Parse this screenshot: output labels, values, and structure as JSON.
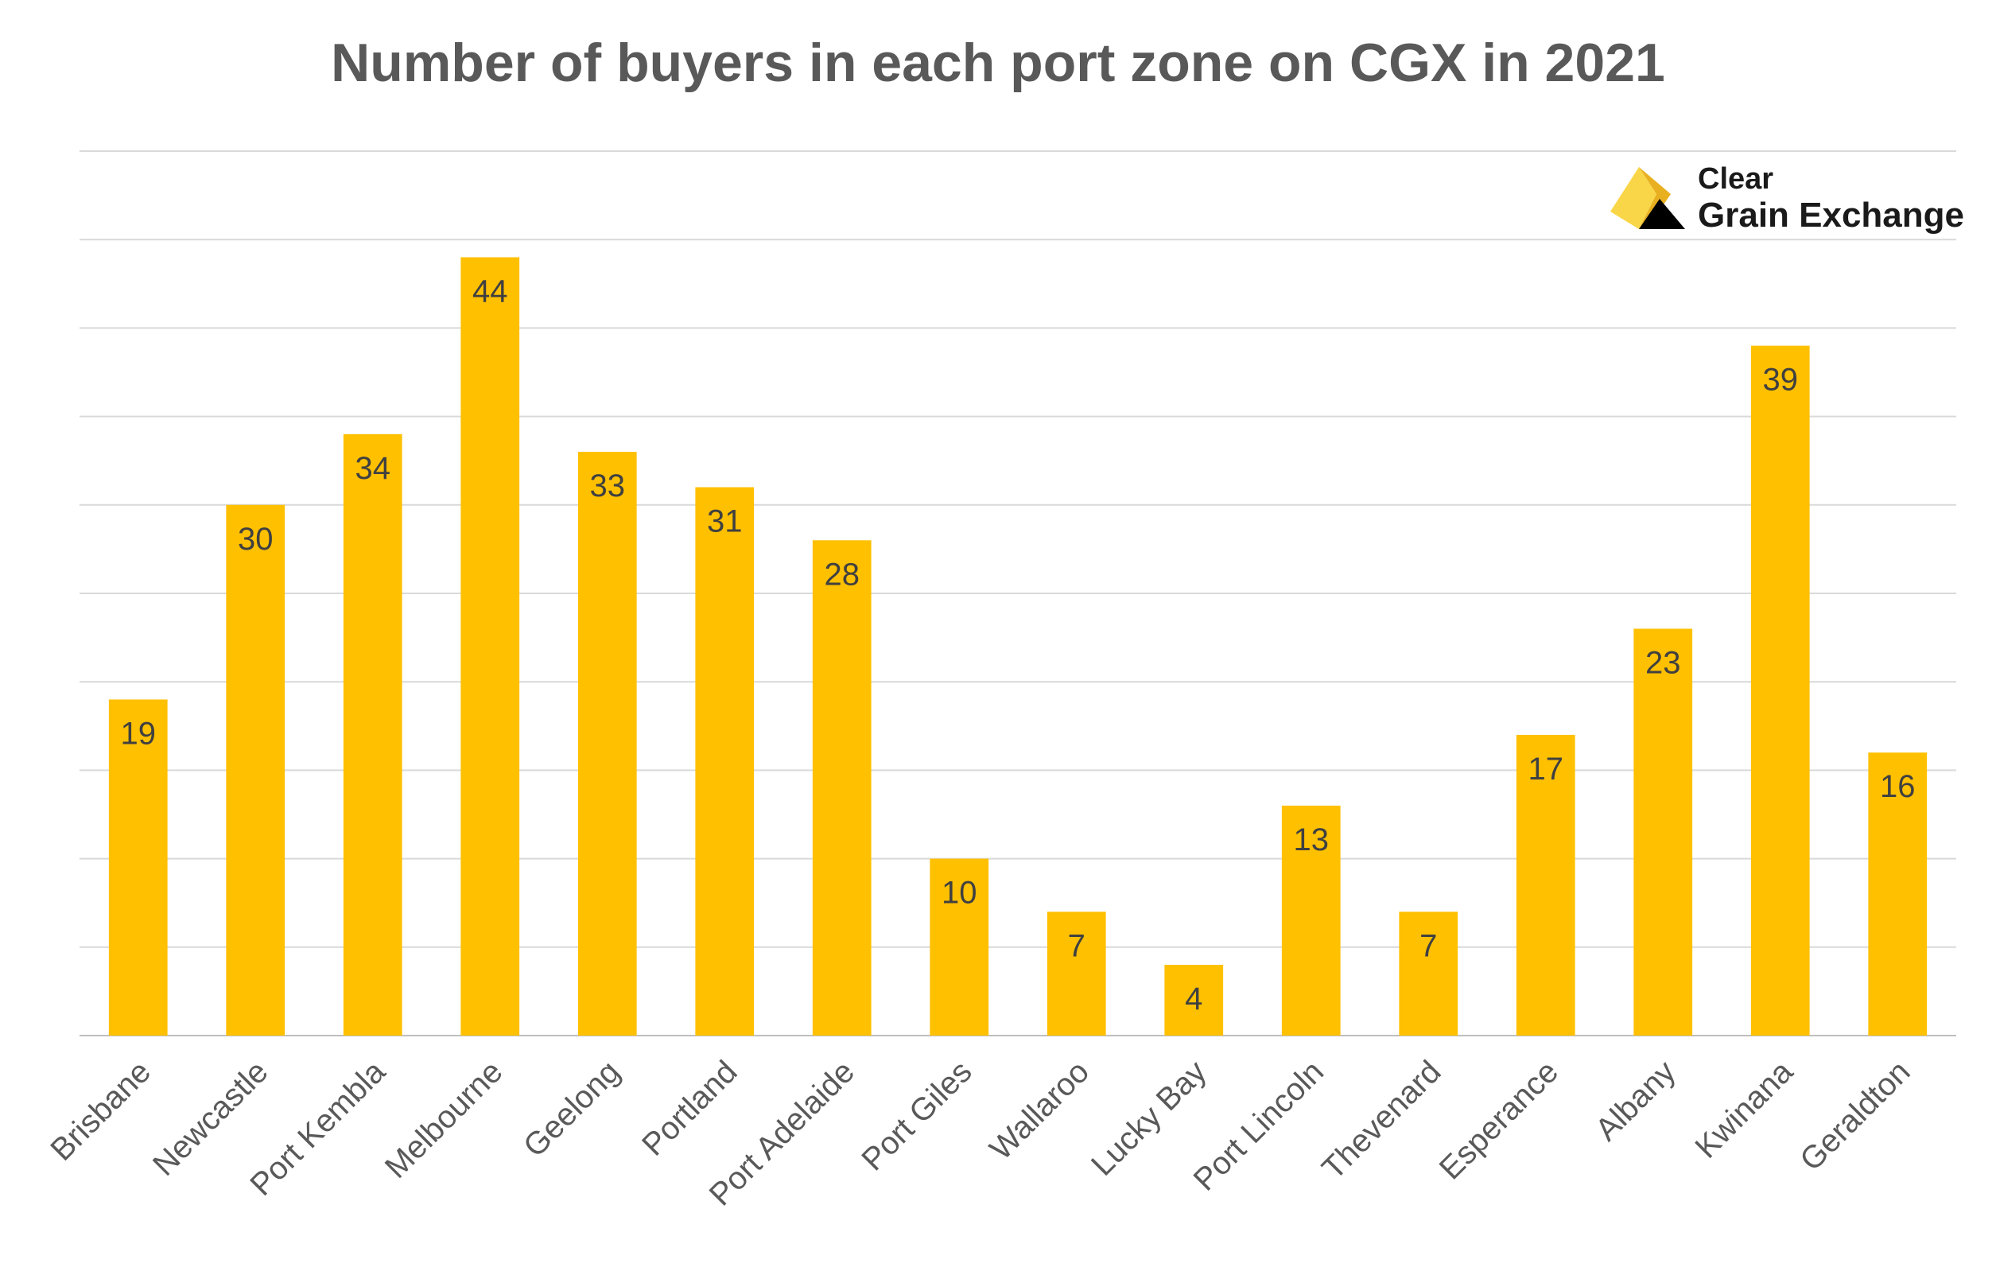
{
  "chart_data": {
    "type": "bar",
    "title": "Number of buyers in each port zone on CGX in 2021",
    "categories": [
      "Brisbane",
      "Newcastle",
      "Port Kembla",
      "Melbourne",
      "Geelong",
      "Portland",
      "Port Adelaide",
      "Port Giles",
      "Wallaroo",
      "Lucky Bay",
      "Port Lincoln",
      "Thevenard",
      "Esperance",
      "Albany",
      "Kwinana",
      "Geraldton"
    ],
    "values": [
      19,
      30,
      34,
      44,
      33,
      31,
      28,
      10,
      7,
      4,
      13,
      7,
      17,
      23,
      39,
      16
    ],
    "xlabel": "",
    "ylabel": "",
    "ylim": [
      0,
      50
    ],
    "gridlines": true,
    "bar_color": "#FFC000",
    "data_labels": true
  },
  "logo": {
    "line1": "Clear",
    "line2": "Grain Exchange",
    "colors": [
      "#FFC000",
      "#F9D648",
      "#000000"
    ]
  }
}
